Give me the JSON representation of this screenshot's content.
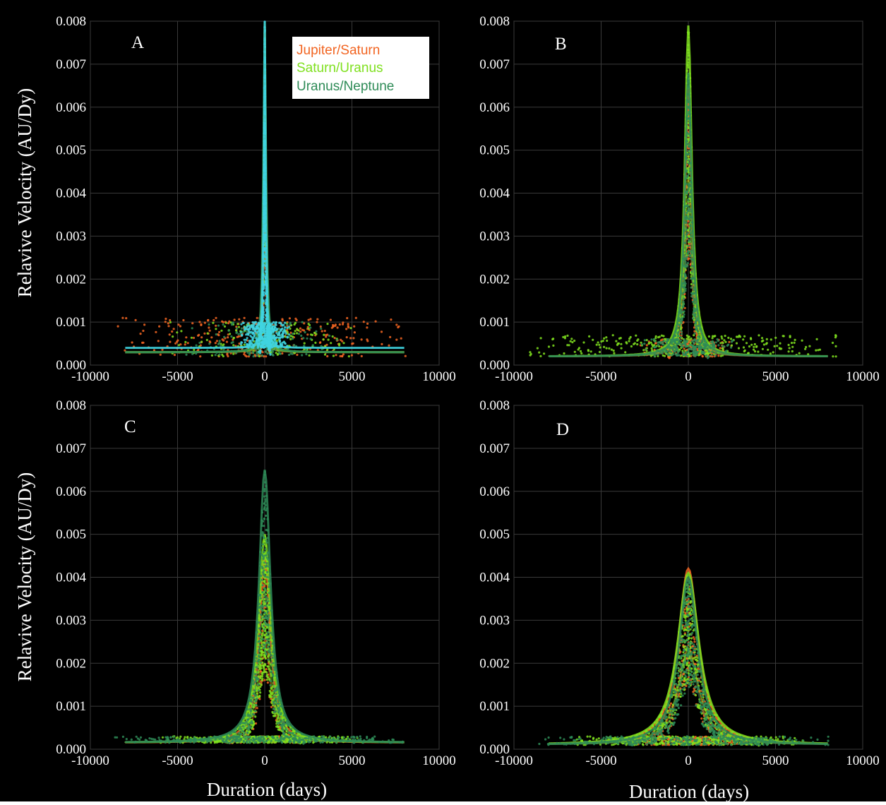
{
  "figure": {
    "background": "#000000",
    "page_background": "#ffffff",
    "ylabel": "Relavive Velocity (AU/Dy)",
    "xlabel": "Duration (days)"
  },
  "legend": {
    "items": [
      {
        "label": "Jupiter/Saturn",
        "color": "#f26522"
      },
      {
        "label": "Saturn/Uranus",
        "color": "#7fe01e"
      },
      {
        "label": "Uranus/Neptune",
        "color": "#2e8b57"
      }
    ]
  },
  "chart_data": [
    {
      "type": "scatter",
      "panel": "A",
      "xlim": [
        -10000,
        10000
      ],
      "ylim": [
        0,
        0.008
      ],
      "xticks": [
        "-10000",
        "-5000",
        "0",
        "5000",
        "10000"
      ],
      "yticks": [
        "0.000",
        "0.001",
        "0.002",
        "0.003",
        "0.004",
        "0.005",
        "0.006",
        "0.007",
        "0.008"
      ],
      "grid": true,
      "legend_position": "top-right",
      "series": [
        {
          "name": "Jupiter/Saturn",
          "color": "#f26522",
          "peak": 0.008,
          "half_width": 70,
          "floor": 0.0003,
          "spread_x": 9000,
          "scatter_band": [
            0.0002,
            0.0011
          ],
          "count": 650
        },
        {
          "name": "Saturn/Uranus",
          "color": "#7fe01e",
          "peak": 0.008,
          "half_width": 80,
          "floor": 0.0003,
          "spread_x": 6000,
          "scatter_band": [
            0.0002,
            0.001
          ],
          "count": 350
        },
        {
          "name": "Uranus/Neptune",
          "color": "#2e8b57",
          "peak": 0.008,
          "half_width": 90,
          "floor": 0.0003,
          "spread_x": 5000,
          "scatter_band": [
            0.0002,
            0.001
          ],
          "count": 350
        },
        {
          "color": "#3fd4e0",
          "peak": 0.008,
          "half_width": 60,
          "floor": 0.0004,
          "spread_x": 1500,
          "scatter_band": [
            0.0004,
            0.001
          ],
          "count": 900
        }
      ]
    },
    {
      "type": "scatter",
      "panel": "B",
      "xlim": [
        -10000,
        10000
      ],
      "ylim": [
        0,
        0.008
      ],
      "xticks": [
        "-10000",
        "-5000",
        "0",
        "5000",
        "10000"
      ],
      "yticks": [
        "0.000",
        "0.001",
        "0.002",
        "0.003",
        "0.004",
        "0.005",
        "0.006",
        "0.007",
        "0.008"
      ],
      "grid": true,
      "series": [
        {
          "name": "Jupiter/Saturn",
          "color": "#f26522",
          "peak": 0.0065,
          "half_width": 220,
          "floor": 0.0002,
          "spread_x": 3000,
          "scatter_band": [
            0.0002,
            0.0006
          ],
          "count": 400
        },
        {
          "name": "Saturn/Uranus",
          "color": "#7fe01e",
          "peak": 0.0079,
          "half_width": 240,
          "floor": 0.0002,
          "spread_x": 9500,
          "scatter_band": [
            0.0002,
            0.0007
          ],
          "count": 700
        },
        {
          "name": "Uranus/Neptune",
          "color": "#2e8b57",
          "peak": 0.0068,
          "half_width": 230,
          "floor": 0.0002,
          "spread_x": 3000,
          "scatter_band": [
            0.0002,
            0.0006
          ],
          "count": 500
        }
      ]
    },
    {
      "type": "scatter",
      "panel": "C",
      "xlim": [
        -10000,
        10000
      ],
      "ylim": [
        0,
        0.008
      ],
      "xticks": [
        "-10000",
        "-5000",
        "0",
        "5000",
        "10000"
      ],
      "yticks": [
        "0.000",
        "0.001",
        "0.002",
        "0.003",
        "0.004",
        "0.005",
        "0.006",
        "0.007",
        "0.008"
      ],
      "grid": true,
      "series": [
        {
          "name": "Jupiter/Saturn",
          "color": "#f26522",
          "peak": 0.0045,
          "half_width": 380,
          "floor": 0.00015,
          "spread_x": 3000,
          "scatter_band": [
            0.00015,
            0.0003
          ],
          "count": 300
        },
        {
          "name": "Saturn/Uranus",
          "color": "#7fe01e",
          "peak": 0.005,
          "half_width": 420,
          "floor": 0.00015,
          "spread_x": 6000,
          "scatter_band": [
            0.00015,
            0.0003
          ],
          "count": 1100
        },
        {
          "name": "Uranus/Neptune",
          "color": "#2e8b57",
          "peak": 0.0065,
          "half_width": 400,
          "floor": 0.00015,
          "spread_x": 9500,
          "scatter_band": [
            0.00015,
            0.0003
          ],
          "count": 700
        }
      ]
    },
    {
      "type": "scatter",
      "panel": "D",
      "xlim": [
        -10000,
        10000
      ],
      "ylim": [
        0,
        0.008
      ],
      "xticks": [
        "-10000",
        "-5000",
        "0",
        "5000",
        "10000"
      ],
      "yticks": [
        "0.000",
        "0.001",
        "0.002",
        "0.003",
        "0.004",
        "0.005",
        "0.006",
        "0.007",
        "0.008"
      ],
      "grid": true,
      "series": [
        {
          "name": "Jupiter/Saturn",
          "color": "#f26522",
          "peak": 0.0042,
          "half_width": 700,
          "floor": 0.0001,
          "spread_x": 4000,
          "scatter_band": [
            0.0001,
            0.0003
          ],
          "count": 700
        },
        {
          "name": "Saturn/Uranus",
          "color": "#7fe01e",
          "peak": 0.0041,
          "half_width": 750,
          "floor": 0.0001,
          "spread_x": 7000,
          "scatter_band": [
            0.0001,
            0.0003
          ],
          "count": 900
        },
        {
          "name": "Uranus/Neptune",
          "color": "#2e8b57",
          "peak": 0.004,
          "half_width": 650,
          "floor": 0.0001,
          "spread_x": 9000,
          "scatter_band": [
            0.0001,
            0.0003
          ],
          "count": 700
        }
      ]
    }
  ]
}
